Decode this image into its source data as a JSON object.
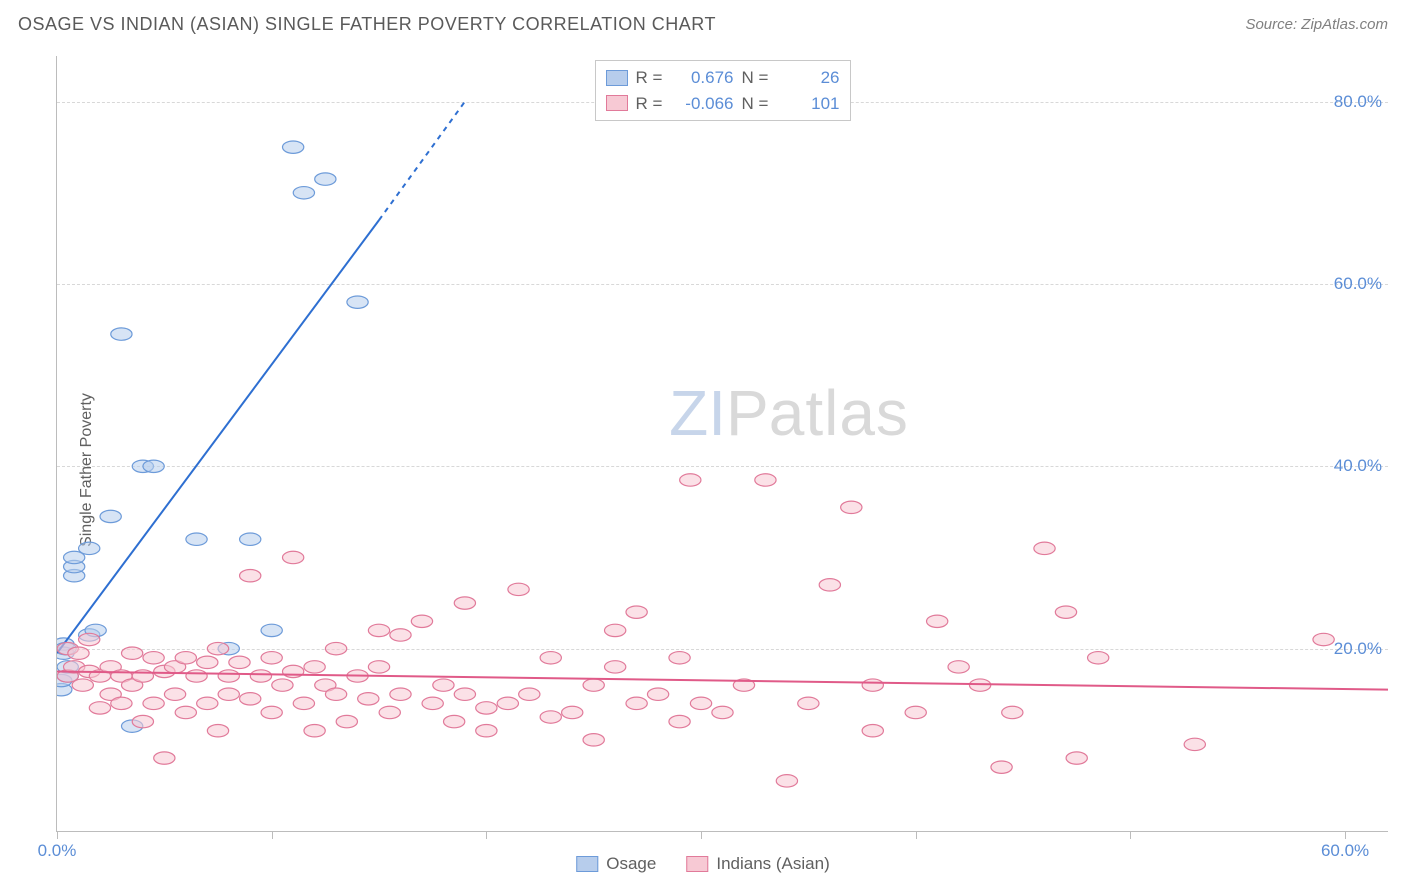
{
  "header": {
    "title": "OSAGE VS INDIAN (ASIAN) SINGLE FATHER POVERTY CORRELATION CHART",
    "source": "Source: ZipAtlas.com"
  },
  "ylabel": "Single Father Poverty",
  "watermark": {
    "z": "Z",
    "i": "I",
    "p": "P",
    "rest": "atlas"
  },
  "chart": {
    "type": "scatter",
    "xlim": [
      0,
      62
    ],
    "ylim": [
      0,
      85
    ],
    "ytick_values": [
      20,
      40,
      60,
      80
    ],
    "ytick_labels": [
      "20.0%",
      "40.0%",
      "60.0%",
      "80.0%"
    ],
    "xtick_values": [
      0,
      10,
      20,
      30,
      40,
      50,
      60
    ],
    "xtick_labels_shown": {
      "0": "0.0%",
      "60": "60.0%"
    },
    "grid_color": "#d8d8d8",
    "axis_color": "#bcbcbc",
    "background_color": "#ffffff",
    "series": [
      {
        "name": "Osage",
        "color_fill": "#b7cdec",
        "color_stroke": "#6d9bd9",
        "marker_radius": 8,
        "fill_opacity": 0.55,
        "R": "0.676",
        "N": "26",
        "trend": {
          "x1": 0,
          "y1": 19.5,
          "x2": 15,
          "y2": 67,
          "dash_x2": 19,
          "dash_y2": 80,
          "color": "#2e6fd1",
          "width": 2
        },
        "points": [
          [
            0.2,
            15.5
          ],
          [
            0.2,
            16.5
          ],
          [
            0.3,
            20.5
          ],
          [
            0.3,
            19.5
          ],
          [
            0.4,
            20
          ],
          [
            0.5,
            17
          ],
          [
            0.5,
            18
          ],
          [
            0.8,
            28
          ],
          [
            0.8,
            29
          ],
          [
            0.8,
            30
          ],
          [
            1.5,
            31
          ],
          [
            1.5,
            21.5
          ],
          [
            1.8,
            22
          ],
          [
            2.5,
            34.5
          ],
          [
            3,
            54.5
          ],
          [
            3.5,
            11.5
          ],
          [
            4,
            40
          ],
          [
            4.5,
            40
          ],
          [
            6.5,
            32
          ],
          [
            8,
            20
          ],
          [
            9,
            32
          ],
          [
            10,
            22
          ],
          [
            11,
            75
          ],
          [
            11.5,
            70
          ],
          [
            12.5,
            71.5
          ],
          [
            14,
            58
          ]
        ]
      },
      {
        "name": "Indians (Asian)",
        "color_fill": "#f7c9d4",
        "color_stroke": "#e17a9a",
        "marker_radius": 8,
        "fill_opacity": 0.55,
        "R": "-0.066",
        "N": "101",
        "trend": {
          "x1": 0,
          "y1": 17.5,
          "x2": 62,
          "y2": 15.5,
          "color": "#e05a88",
          "width": 2
        },
        "points": [
          [
            0.5,
            20
          ],
          [
            0.5,
            17
          ],
          [
            0.8,
            18
          ],
          [
            1,
            19.5
          ],
          [
            1.2,
            16
          ],
          [
            1.5,
            17.5
          ],
          [
            1.5,
            21
          ],
          [
            2,
            17
          ],
          [
            2,
            13.5
          ],
          [
            2.5,
            18
          ],
          [
            2.5,
            15
          ],
          [
            3,
            17
          ],
          [
            3,
            14
          ],
          [
            3.5,
            19.5
          ],
          [
            3.5,
            16
          ],
          [
            4,
            17
          ],
          [
            4,
            12
          ],
          [
            4.5,
            19
          ],
          [
            4.5,
            14
          ],
          [
            5,
            17.5
          ],
          [
            5,
            8
          ],
          [
            5.5,
            18
          ],
          [
            5.5,
            15
          ],
          [
            6,
            19
          ],
          [
            6,
            13
          ],
          [
            6.5,
            17
          ],
          [
            7,
            18.5
          ],
          [
            7,
            14
          ],
          [
            7.5,
            20
          ],
          [
            7.5,
            11
          ],
          [
            8,
            17
          ],
          [
            8,
            15
          ],
          [
            8.5,
            18.5
          ],
          [
            9,
            14.5
          ],
          [
            9,
            28
          ],
          [
            9.5,
            17
          ],
          [
            10,
            19
          ],
          [
            10,
            13
          ],
          [
            10.5,
            16
          ],
          [
            11,
            17.5
          ],
          [
            11,
            30
          ],
          [
            11.5,
            14
          ],
          [
            12,
            18
          ],
          [
            12,
            11
          ],
          [
            12.5,
            16
          ],
          [
            13,
            15
          ],
          [
            13,
            20
          ],
          [
            13.5,
            12
          ],
          [
            14,
            17
          ],
          [
            14.5,
            14.5
          ],
          [
            15,
            18
          ],
          [
            15,
            22
          ],
          [
            15.5,
            13
          ],
          [
            16,
            15
          ],
          [
            16,
            21.5
          ],
          [
            17,
            23
          ],
          [
            17.5,
            14
          ],
          [
            18,
            16
          ],
          [
            18.5,
            12
          ],
          [
            19,
            15
          ],
          [
            19,
            25
          ],
          [
            20,
            13.5
          ],
          [
            20,
            11
          ],
          [
            21,
            14
          ],
          [
            21.5,
            26.5
          ],
          [
            22,
            15
          ],
          [
            23,
            12.5
          ],
          [
            23,
            19
          ],
          [
            24,
            13
          ],
          [
            25,
            16
          ],
          [
            25,
            10
          ],
          [
            26,
            18
          ],
          [
            26,
            22
          ],
          [
            27,
            24
          ],
          [
            27,
            14
          ],
          [
            28,
            15
          ],
          [
            29,
            12
          ],
          [
            29,
            19
          ],
          [
            29.5,
            38.5
          ],
          [
            30,
            14
          ],
          [
            31,
            13
          ],
          [
            32,
            16
          ],
          [
            33,
            38.5
          ],
          [
            34,
            5.5
          ],
          [
            35,
            14
          ],
          [
            36,
            27
          ],
          [
            37,
            35.5
          ],
          [
            38,
            11
          ],
          [
            38,
            16
          ],
          [
            40,
            13
          ],
          [
            41,
            23
          ],
          [
            42,
            18
          ],
          [
            43,
            16
          ],
          [
            44,
            7
          ],
          [
            44.5,
            13
          ],
          [
            46,
            31
          ],
          [
            47,
            24
          ],
          [
            47.5,
            8
          ],
          [
            48.5,
            19
          ],
          [
            53,
            9.5
          ],
          [
            59,
            21
          ]
        ]
      }
    ]
  },
  "legend_top_labels": {
    "R": "R =",
    "N": "N ="
  },
  "legend_bottom": [
    {
      "label": "Osage",
      "fill": "#b7cdec",
      "stroke": "#6d9bd9"
    },
    {
      "label": "Indians (Asian)",
      "fill": "#f7c9d4",
      "stroke": "#e17a9a"
    }
  ]
}
